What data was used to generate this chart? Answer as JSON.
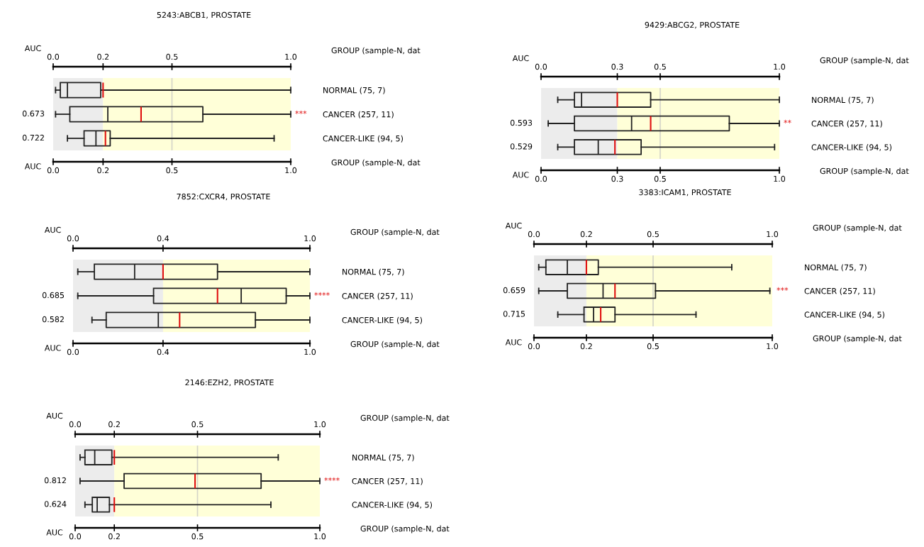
{
  "chart_data": [
    {
      "type": "box",
      "orientation": "horizontal",
      "title": "5243:ABCB1, PROSTATE",
      "xlabel": "AUC",
      "x2label": "AUC",
      "categories": [
        "NORMAL (75, 7)",
        "CANCER (257, 11)",
        "CANCER-LIKE (94, 5)"
      ],
      "boxes": [
        {
          "low": 0.01,
          "q1": 0.03,
          "median": 0.06,
          "q3": 0.2,
          "high": 1.0,
          "mean": 0.21
        },
        {
          "low": 0.01,
          "q1": 0.07,
          "median": 0.23,
          "q3": 0.63,
          "high": 1.0,
          "mean": 0.37
        },
        {
          "low": 0.06,
          "q1": 0.13,
          "median": 0.18,
          "q3": 0.24,
          "high": 0.93,
          "mean": 0.22
        }
      ],
      "value_labels": [
        null,
        "0.673",
        "0.722"
      ],
      "xlim": [
        0,
        1
      ],
      "xticks": [
        {
          "value": 0,
          "label": "0.0"
        },
        {
          "value": 0.21,
          "label": "0.2"
        },
        {
          "value": 0.5,
          "label": "0.5"
        },
        {
          "value": 1,
          "label": "1.0"
        }
      ],
      "x2lim": [
        0,
        1
      ],
      "x2ticks": [
        {
          "value": 0,
          "label": "0.0"
        },
        {
          "value": 0.21,
          "label": "0.2"
        },
        {
          "value": 0.5,
          "label": "0.5"
        },
        {
          "value": 1,
          "label": "1.0"
        }
      ],
      "bands": [
        {
          "axis": "x",
          "from": 0,
          "to": 0.21,
          "color": "#ececec"
        },
        {
          "axis": "x",
          "from": 0.21,
          "to": 1,
          "color": "#ffffd8"
        }
      ],
      "ref_lines": [
        {
          "axis": "x",
          "value": 0.5,
          "color": "#d4d4c8"
        }
      ],
      "annotations": [
        "GROUP (sample-N, dat",
        "GROUP (sample-N, dat",
        "***"
      ]
    },
    {
      "type": "box",
      "orientation": "horizontal",
      "title": "9429:ABCG2, PROSTATE",
      "xlabel": "AUC",
      "x2label": "AUC",
      "categories": [
        "NORMAL (75, 7)",
        "CANCER (257, 11)",
        "CANCER-LIKE (94, 5)"
      ],
      "boxes": [
        {
          "low": 0.07,
          "q1": 0.14,
          "median": 0.17,
          "q3": 0.46,
          "high": 1.0,
          "mean": 0.32
        },
        {
          "low": 0.03,
          "q1": 0.14,
          "median": 0.38,
          "q3": 0.79,
          "high": 1.0,
          "mean": 0.46
        },
        {
          "low": 0.07,
          "q1": 0.14,
          "median": 0.24,
          "q3": 0.42,
          "high": 0.98,
          "mean": 0.31
        }
      ],
      "value_labels": [
        null,
        "0.593",
        "0.529"
      ],
      "xlim": [
        0,
        1
      ],
      "xticks": [
        {
          "value": 0,
          "label": "0.0"
        },
        {
          "value": 0.32,
          "label": "0.3"
        },
        {
          "value": 0.5,
          "label": "0.5"
        },
        {
          "value": 1,
          "label": "1.0"
        }
      ],
      "x2lim": [
        0,
        1
      ],
      "x2ticks": [
        {
          "value": 0,
          "label": "0.0"
        },
        {
          "value": 0.32,
          "label": "0.3"
        },
        {
          "value": 0.5,
          "label": "0.5"
        },
        {
          "value": 1,
          "label": "1.0"
        }
      ],
      "bands": [
        {
          "axis": "x",
          "from": 0,
          "to": 0.32,
          "color": "#ececec"
        },
        {
          "axis": "x",
          "from": 0.32,
          "to": 1,
          "color": "#ffffd8"
        }
      ],
      "ref_lines": [
        {
          "axis": "x",
          "value": 0.5,
          "color": "#d4d4c8"
        }
      ],
      "annotations": [
        "GROUP (sample-N, dat",
        "GROUP (sample-N, dat",
        "**"
      ]
    },
    {
      "type": "box",
      "orientation": "horizontal",
      "title": "7852:CXCR4, PROSTATE",
      "xlabel": "AUC",
      "x2label": "AUC",
      "categories": [
        "NORMAL (75, 7)",
        "CANCER (257, 11)",
        "CANCER-LIKE (94, 5)"
      ],
      "boxes": [
        {
          "low": 0.02,
          "q1": 0.09,
          "median": 0.26,
          "q3": 0.61,
          "high": 1.0,
          "mean": 0.38
        },
        {
          "low": 0.02,
          "q1": 0.34,
          "median": 0.71,
          "q3": 0.9,
          "high": 1.0,
          "mean": 0.61
        },
        {
          "low": 0.08,
          "q1": 0.14,
          "median": 0.36,
          "q3": 0.77,
          "high": 1.0,
          "mean": 0.45
        }
      ],
      "value_labels": [
        null,
        "0.685",
        "0.582"
      ],
      "xlim": [
        0,
        1
      ],
      "xticks": [
        {
          "value": 0,
          "label": "0.0"
        },
        {
          "value": 0.38,
          "label": "0.4"
        },
        {
          "value": 1,
          "label": "1.0"
        }
      ],
      "x2lim": [
        0,
        1
      ],
      "x2ticks": [
        {
          "value": 0,
          "label": "0.0"
        },
        {
          "value": 0.38,
          "label": "0.4"
        },
        {
          "value": 1,
          "label": "1.0"
        }
      ],
      "bands": [
        {
          "axis": "x",
          "from": 0,
          "to": 0.38,
          "color": "#ececec"
        },
        {
          "axis": "x",
          "from": 0.38,
          "to": 1,
          "color": "#ffffd8"
        }
      ],
      "annotations": [
        "GROUP (sample-N, dat",
        "GROUP (sample-N, dat",
        "****"
      ]
    },
    {
      "type": "box",
      "orientation": "horizontal",
      "title": "3383:ICAM1, PROSTATE",
      "xlabel": "AUC",
      "x2label": "AUC",
      "categories": [
        "NORMAL (75, 7)",
        "CANCER (257, 11)",
        "CANCER-LIKE (94, 5)"
      ],
      "boxes": [
        {
          "low": 0.02,
          "q1": 0.05,
          "median": 0.14,
          "q3": 0.27,
          "high": 0.83,
          "mean": 0.22
        },
        {
          "low": 0.02,
          "q1": 0.14,
          "median": 0.29,
          "q3": 0.51,
          "high": 0.99,
          "mean": 0.34
        },
        {
          "low": 0.1,
          "q1": 0.21,
          "median": 0.25,
          "q3": 0.34,
          "high": 0.68,
          "mean": 0.28
        }
      ],
      "value_labels": [
        null,
        "0.659",
        "0.715"
      ],
      "xlim": [
        0,
        1
      ],
      "xticks": [
        {
          "value": 0,
          "label": "0.0"
        },
        {
          "value": 0.22,
          "label": "0.2"
        },
        {
          "value": 0.5,
          "label": "0.5"
        },
        {
          "value": 1,
          "label": "1.0"
        }
      ],
      "x2lim": [
        0,
        1
      ],
      "x2ticks": [
        {
          "value": 0,
          "label": "0.0"
        },
        {
          "value": 0.22,
          "label": "0.2"
        },
        {
          "value": 0.5,
          "label": "0.5"
        },
        {
          "value": 1,
          "label": "1.0"
        }
      ],
      "bands": [
        {
          "axis": "x",
          "from": 0,
          "to": 0.22,
          "color": "#ececec"
        },
        {
          "axis": "x",
          "from": 0.22,
          "to": 1,
          "color": "#ffffd8"
        }
      ],
      "ref_lines": [
        {
          "axis": "x",
          "value": 0.5,
          "color": "#d4d4c8"
        }
      ],
      "annotations": [
        "GROUP (sample-N, dat",
        "GROUP (sample-N, dat",
        "***"
      ]
    },
    {
      "type": "box",
      "orientation": "horizontal",
      "title": "2146:EZH2, PROSTATE",
      "xlabel": "AUC",
      "x2label": "AUC",
      "categories": [
        "NORMAL (75, 7)",
        "CANCER (257, 11)",
        "CANCER-LIKE (94, 5)"
      ],
      "boxes": [
        {
          "low": 0.02,
          "q1": 0.04,
          "median": 0.08,
          "q3": 0.15,
          "high": 0.83,
          "mean": 0.16
        },
        {
          "low": 0.02,
          "q1": 0.2,
          "median": 0.49,
          "q3": 0.76,
          "high": 1.0,
          "mean": 0.49
        },
        {
          "low": 0.04,
          "q1": 0.07,
          "median": 0.09,
          "q3": 0.14,
          "high": 0.8,
          "mean": 0.16
        }
      ],
      "value_labels": [
        null,
        "0.812",
        "0.624"
      ],
      "xlim": [
        0,
        1
      ],
      "xticks": [
        {
          "value": 0,
          "label": "0.0"
        },
        {
          "value": 0.16,
          "label": "0.2"
        },
        {
          "value": 0.5,
          "label": "0.5"
        },
        {
          "value": 1,
          "label": "1.0"
        }
      ],
      "x2lim": [
        0,
        1
      ],
      "x2ticks": [
        {
          "value": 0,
          "label": "0.0"
        },
        {
          "value": 0.16,
          "label": "0.2"
        },
        {
          "value": 0.5,
          "label": "0.5"
        },
        {
          "value": 1,
          "label": "1.0"
        }
      ],
      "bands": [
        {
          "axis": "x",
          "from": 0,
          "to": 0.16,
          "color": "#ececec"
        },
        {
          "axis": "x",
          "from": 0.16,
          "to": 1,
          "color": "#ffffd8"
        }
      ],
      "ref_lines": [
        {
          "axis": "x",
          "value": 0.5,
          "color": "#d4d4c8"
        }
      ],
      "annotations": [
        "GROUP (sample-N, dat",
        "GROUP (sample-N, dat",
        "****"
      ]
    }
  ]
}
